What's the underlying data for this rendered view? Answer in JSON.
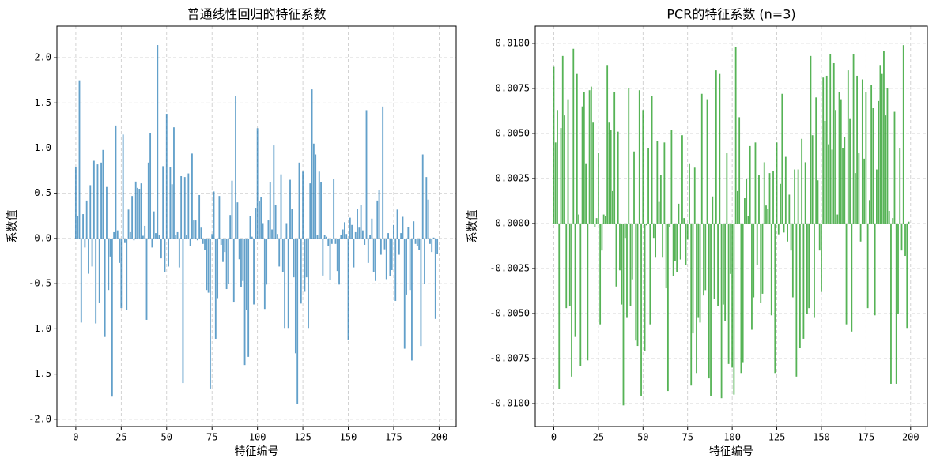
{
  "chart_data": [
    {
      "type": "bar",
      "title": "普通线性回归的特征系数",
      "xlabel": "特征编号",
      "ylabel": "系数值",
      "color": "#1f77b4",
      "alpha": 0.7,
      "grid": true,
      "xlim": [
        -10.4,
        209.4
      ],
      "xticks": [
        0,
        25,
        50,
        75,
        100,
        125,
        150,
        175,
        200
      ],
      "ylim": [
        -2.08,
        2.35
      ],
      "yticks": [
        {
          "value": -2,
          "label": "-2.0"
        },
        -1.5,
        {
          "value": -1,
          "label": "-1.0"
        },
        -0.5,
        {
          "value": 0,
          "label": "0.0"
        },
        0.5,
        {
          "value": 1,
          "label": "1.0"
        },
        1.5,
        {
          "value": 2,
          "label": "2.0"
        }
      ],
      "values": [
        0.79,
        0.25,
        1.75,
        -0.93,
        0.27,
        -0.1,
        0.42,
        -0.39,
        0.59,
        -0.31,
        0.86,
        -0.94,
        0.82,
        -0.71,
        0.84,
        0.98,
        -1.09,
        0.57,
        -0.57,
        -0.2,
        -1.75,
        0.07,
        1.25,
        0.09,
        -0.27,
        -0.77,
        1.15,
        -0.05,
        -0.79,
        0.32,
        0.07,
        0.47,
        -0.02,
        0.63,
        0.56,
        0.55,
        0.61,
        0.03,
        0.14,
        -0.9,
        0.84,
        1.17,
        -0.1,
        0.3,
        0.06,
        2.14,
        0.04,
        -0.22,
        0.8,
        -0.37,
        1.38,
        -0.31,
        0.79,
        0.6,
        1.23,
        0.04,
        0.07,
        -0.32,
        0.69,
        -1.6,
        0.68,
        0.04,
        0.72,
        -0.08,
        0.94,
        0.2,
        0.2,
        -0.02,
        0.48,
        0.12,
        -0.06,
        -0.13,
        -0.57,
        -0.6,
        -1.66,
        0.05,
        0.52,
        -1.11,
        -0.66,
        0.47,
        -0.07,
        -0.26,
        -0.15,
        -0.56,
        -0.5,
        0.26,
        0.64,
        -0.7,
        1.58,
        0.4,
        -0.23,
        -0.54,
        -0.47,
        -1.4,
        -0.79,
        -1.31,
        0.25,
        0.02,
        -0.73,
        0.34,
        1.22,
        0.41,
        0.46,
        0.17,
        -0.78,
        -0.51,
        0.2,
        0.62,
        0.1,
        1.03,
        0.37,
        0.05,
        -0.31,
        0.71,
        -0.37,
        -0.99,
        0.17,
        -0.99,
        0.65,
        0.33,
        -0.43,
        -1.27,
        -1.83,
        0.84,
        -0.72,
        0.74,
        -0.59,
        -0.43,
        -0.99,
        0.61,
        1.65,
        1.05,
        0.93,
        0.04,
        0.74,
        0.62,
        -0.41,
        0.04,
        0.02,
        -0.08,
        -0.46,
        -0.06,
        0.66,
        -0.06,
        -0.36,
        -0.51,
        0.04,
        0.1,
        0.18,
        0.05,
        -1.12,
        0.23,
        0.15,
        -0.32,
        0.07,
        0.33,
        0.12,
        0.37,
        0.09,
        -0.07,
        1.42,
        -0.27,
        0.04,
        0.22,
        -0.37,
        -0.47,
        0.42,
        0.54,
        -0.18,
        1.46,
        -0.12,
        -0.45,
        0.06,
        -0.42,
        -0.35,
        0.15,
        -0.69,
        0.32,
        -0.18,
        0.06,
        0.24,
        -1.22,
        -0.62,
        0.13,
        -0.57,
        -1.35,
        0.19,
        -0.06,
        -0.08,
        -0.13,
        -1.19,
        0.93,
        -0.5,
        0.68,
        0.43,
        -0.06,
        -0.15,
        0.01,
        -0.89,
        -0.17
      ]
    },
    {
      "type": "bar",
      "title": "PCR的特征系数 (n=3)",
      "xlabel": "特征编号",
      "ylabel": "系数值",
      "color": "#2ca02c",
      "alpha": 0.8,
      "grid": true,
      "xlim": [
        -10.4,
        209.4
      ],
      "xticks": [
        0,
        25,
        50,
        75,
        100,
        125,
        150,
        175,
        200
      ],
      "ylim": [
        -0.01127,
        0.01096
      ],
      "yticks": [
        {
          "value": -0.01,
          "label": "-0.0100"
        },
        {
          "value": -0.0075,
          "label": "-0.0075"
        },
        {
          "value": -0.005,
          "label": "-0.0050"
        },
        {
          "value": -0.0025,
          "label": "-0.0025"
        },
        {
          "value": 0,
          "label": "0.0000"
        },
        {
          "value": 0.0025,
          "label": "0.0025"
        },
        {
          "value": 0.005,
          "label": "0.0050"
        },
        {
          "value": 0.0075,
          "label": "0.0075"
        },
        {
          "value": 0.01,
          "label": "0.0100"
        }
      ],
      "values": [
        0.0087,
        0.0045,
        0.0063,
        -0.0092,
        0.0053,
        0.0093,
        0.006,
        -0.0047,
        0.0069,
        -0.0046,
        -0.0085,
        0.0097,
        -0.0063,
        0.0083,
        0.0005,
        -0.0079,
        0.0065,
        0.0073,
        0.0033,
        -0.0076,
        0.0074,
        0.0076,
        0.0056,
        -0.0002,
        0.0003,
        0.0039,
        -0.0056,
        -0.0015,
        0.0005,
        0.0004,
        0.0088,
        0.0056,
        0.0052,
        0.0018,
        0.0073,
        -0.0035,
        0.0051,
        -0.0026,
        -0.0045,
        -0.0101,
        -0.0008,
        -0.0052,
        0.0075,
        -0.0046,
        -0.0031,
        0.004,
        -0.0065,
        -0.0068,
        0.0074,
        -0.0096,
        0.0063,
        -0.0071,
        -0.0001,
        0.0042,
        -0.0056,
        0.0071,
        -0.0008,
        -0.0019,
        0.0046,
        0.0012,
        0.0027,
        -0.0019,
        0.0045,
        -0.0036,
        -0.0093,
        -0.0002,
        0.0052,
        -0.0029,
        -0.0021,
        -0.0027,
        0.0011,
        -0.002,
        0.0049,
        0.0003,
        -0.0023,
        -0.0009,
        0.0033,
        -0.009,
        -0.0061,
        0.0031,
        -0.0083,
        -0.0052,
        -0.0055,
        0.0072,
        -0.004,
        -0.0037,
        0.0069,
        -0.0086,
        -0.0096,
        0.0015,
        -0.0042,
        0.0085,
        -0.0046,
        0.0083,
        -0.0097,
        -0.0045,
        -0.0054,
        0.0039,
        -0.0078,
        -0.0028,
        -0.008,
        -0.0095,
        0.0098,
        0.0018,
        0.0059,
        -0.0083,
        -0.0077,
        0.0014,
        0.0025,
        0.0004,
        0.0043,
        -0.0059,
        -0.0041,
        0.0045,
        -0.0023,
        0.0027,
        -0.0044,
        -0.0039,
        0.0034,
        0.001,
        0.0008,
        0.0028,
        -0.0051,
        0.0029,
        -0.0083,
        0.0045,
        -0.0006,
        0.0022,
        0.0072,
        -0.0005,
        0.0037,
        -0.001,
        0.0016,
        -0.0015,
        -0.0041,
        0.003,
        -0.0085,
        0.003,
        -0.0069,
        0.0047,
        -0.0064,
        0.0034,
        -0.005,
        -0.0047,
        0.0093,
        0.0049,
        -0.0052,
        0.007,
        0.0024,
        -0.0015,
        -0.0038,
        0.0081,
        0.0057,
        0.0082,
        0.0044,
        0.0094,
        0.0041,
        0.0089,
        0.0063,
        0.0005,
        0.0073,
        0.0069,
        0.0042,
        0.0048,
        -0.0056,
        0.0085,
        0.0058,
        -0.006,
        0.0094,
        0.0028,
        0.0082,
        0.0039,
        -0.001,
        0.008,
        0.0036,
        0.0073,
        -0.0047,
        0.0013,
        0.0077,
        0.0064,
        -0.0051,
        0.003,
        0.0068,
        0.0088,
        0.0083,
        0.0096,
        0.006,
        0.0075,
        0.0007,
        -0.0089,
        0.0003,
        0.0062,
        -0.0089,
        -0.005,
        0.0042,
        -0.0015,
        0.0099,
        -0.0018,
        -0.0058,
        0.0001
      ]
    }
  ]
}
